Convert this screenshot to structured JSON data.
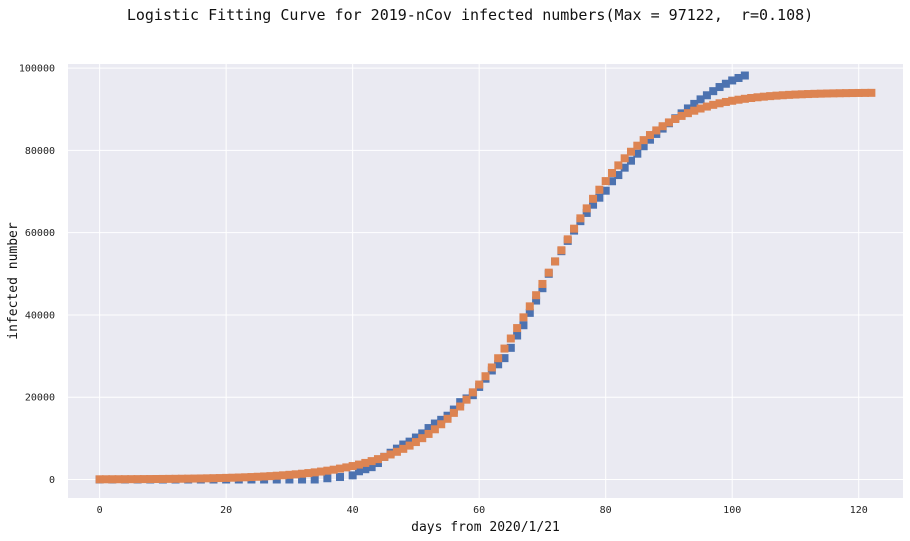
{
  "colors": {
    "plot_bg": "#EAEAF2",
    "grid": "#FFFFFF",
    "series_actual": "#4C72B0",
    "series_fit": "#DD8452"
  },
  "chart_data": {
    "type": "scatter",
    "title": "Logistic Fitting Curve for 2019-nCov infected numbers(Max = 97122,  r=0.108)",
    "xlabel": "days from 2020/1/21",
    "ylabel": "infected number",
    "xlim": [
      -5,
      127
    ],
    "ylim": [
      -4500,
      101000
    ],
    "xticks": [
      0,
      20,
      40,
      60,
      80,
      100,
      120
    ],
    "yticks": [
      0,
      20000,
      40000,
      60000,
      80000,
      100000
    ],
    "grid": true,
    "logistic_fit": {
      "K": 97122,
      "r": 0.108,
      "P0": 45
    },
    "series": [
      {
        "x": [
          0,
          2,
          4,
          6,
          8,
          10,
          12,
          14,
          16,
          18,
          20,
          22,
          24,
          26,
          28,
          30,
          32,
          34,
          36,
          38,
          40,
          41,
          42,
          43,
          44,
          45,
          46,
          47,
          48,
          49,
          50,
          51,
          52,
          53,
          54,
          55,
          56,
          57,
          58,
          59,
          60,
          61,
          62,
          63,
          64,
          65,
          66,
          67,
          68,
          69,
          70,
          71,
          72,
          73,
          74,
          75,
          76,
          77,
          78,
          79,
          80,
          81,
          82,
          83,
          84,
          85,
          86,
          87,
          88,
          89,
          90,
          91,
          92,
          93,
          94,
          95,
          96,
          97,
          98,
          99,
          100,
          101,
          102
        ],
        "values": [
          0,
          0,
          0,
          0,
          0,
          0,
          0,
          0,
          0,
          0,
          0,
          0,
          0,
          0,
          0,
          0,
          0,
          0,
          300,
          600,
          1000,
          2000,
          2500,
          3000,
          4000,
          5500,
          6500,
          7500,
          8500,
          9200,
          10200,
          11200,
          12500,
          13600,
          14500,
          15500,
          17000,
          18800,
          19700,
          20500,
          22500,
          24500,
          26500,
          28000,
          29500,
          32000,
          35000,
          37500,
          40500,
          43500,
          46500,
          50000,
          53000,
          55500,
          58000,
          60500,
          62800,
          64800,
          66800,
          68500,
          70200,
          72500,
          74000,
          75800,
          77500,
          79200,
          81000,
          82600,
          84000,
          85300,
          86600,
          87800,
          89000,
          90200,
          91300,
          92400,
          93400,
          94400,
          95400,
          96200,
          97000,
          97600,
          98200
        ]
      },
      {
        "x": [
          0,
          1,
          2,
          3,
          4,
          5,
          6,
          7,
          8,
          9,
          10,
          11,
          12,
          13,
          14,
          15,
          16,
          17,
          18,
          19,
          20,
          21,
          22,
          23,
          24,
          25,
          26,
          27,
          28,
          29,
          30,
          31,
          32,
          33,
          34,
          35,
          36,
          37,
          38,
          39,
          40,
          41,
          42,
          43,
          44,
          45,
          46,
          47,
          48,
          49,
          50,
          51,
          52,
          53,
          54,
          55,
          56,
          57,
          58,
          59,
          60,
          61,
          62,
          63,
          64,
          65,
          66,
          67,
          68,
          69,
          70,
          71,
          72,
          73,
          74,
          75,
          76,
          77,
          78,
          79,
          80,
          81,
          82,
          83,
          84,
          85,
          86,
          87,
          88,
          89,
          90,
          91,
          92,
          93,
          94,
          95,
          96,
          97,
          98,
          99,
          100,
          101,
          102,
          103,
          104,
          105,
          106,
          107,
          108,
          109,
          110,
          111,
          112,
          113,
          114,
          115,
          116,
          117,
          118,
          119,
          120,
          121,
          122
        ],
        "values": [
          45,
          50,
          56,
          62,
          69,
          77,
          86,
          96,
          107,
          119,
          133,
          148,
          165,
          183,
          204,
          227,
          252,
          281,
          313,
          348,
          388,
          432,
          481,
          535,
          595,
          663,
          738,
          821,
          914,
          1017,
          1132,
          1259,
          1401,
          1558,
          1733,
          1928,
          2143,
          2382,
          2647,
          2941,
          3266,
          3627,
          4025,
          4466,
          4952,
          5489,
          6081,
          6733,
          7449,
          8236,
          9099,
          10044,
          11076,
          12202,
          13426,
          14754,
          16191,
          17739,
          19403,
          21184,
          23083,
          25100,
          27232,
          29476,
          31826,
          34273,
          36807,
          39416,
          42084,
          44795,
          47533,
          50279,
          53013,
          55718,
          58375,
          60968,
          63483,
          65907,
          68229,
          70441,
          72535,
          74507,
          76354,
          78075,
          79671,
          81143,
          82495,
          83731,
          84856,
          85877,
          86800,
          87632,
          88379,
          89049,
          89646,
          90179,
          90653,
          91073,
          91445,
          91773,
          92063,
          92317,
          92541,
          92737,
          92909,
          93060,
          93192,
          93307,
          93408,
          93496,
          93572,
          93639,
          93697,
          93748,
          93792,
          93830,
          93863,
          93892,
          93918,
          93940,
          93959,
          93975,
          93990
        ]
      }
    ]
  }
}
